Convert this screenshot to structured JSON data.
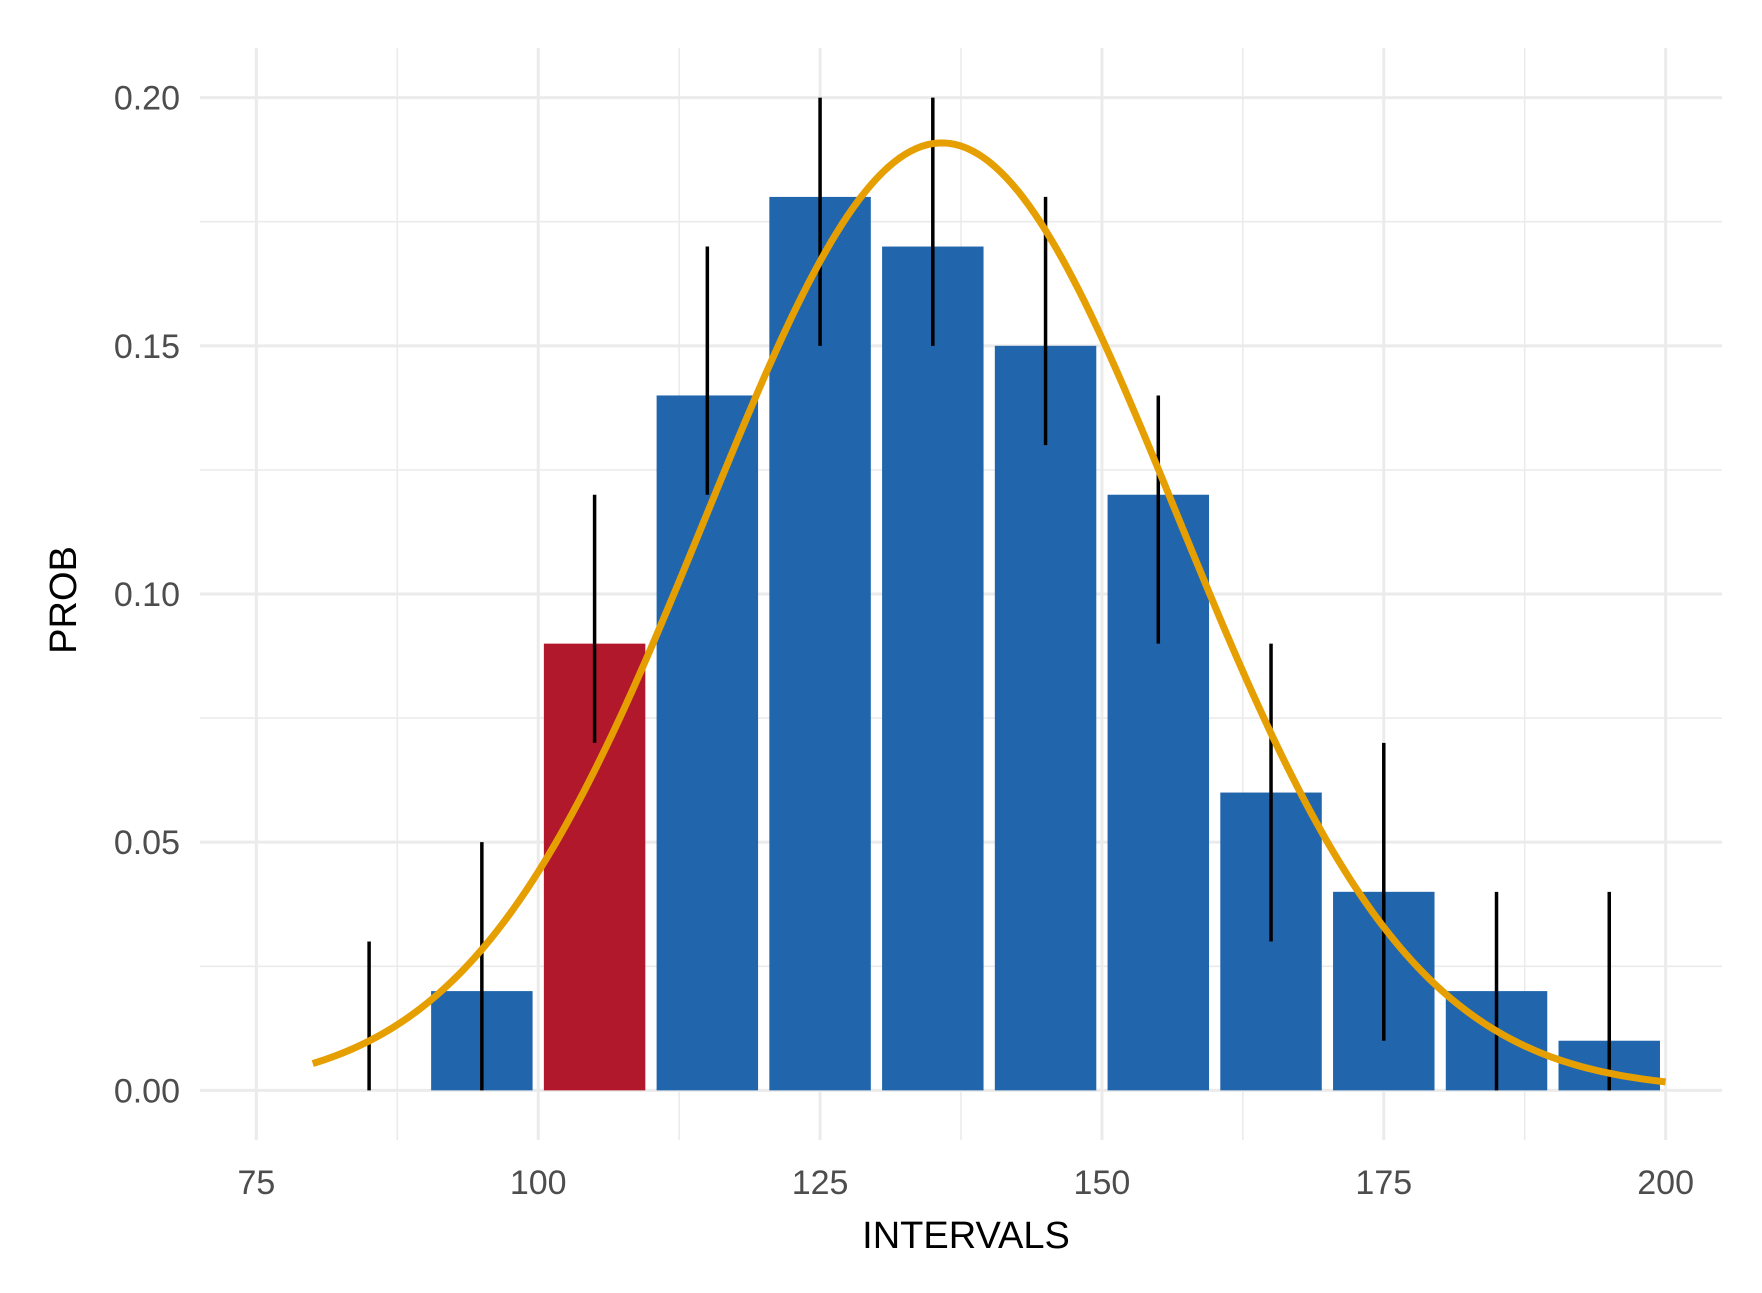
{
  "colors": {
    "bar": "#2166ac",
    "highlight_bar": "#b2182b",
    "curve": "#e69f00",
    "error_bar": "#000000",
    "grid": "#ebebeb",
    "background": "#ffffff"
  },
  "chart_data": {
    "type": "bar",
    "title": "",
    "xlabel": "INTERVALS",
    "ylabel": "PROB",
    "xlim": [
      70,
      205
    ],
    "ylim": [
      -0.01,
      0.21
    ],
    "x_ticks": [
      75,
      100,
      125,
      150,
      175,
      200
    ],
    "x_tick_labels": [
      "75",
      "100",
      "125",
      "150",
      "175",
      "200"
    ],
    "y_ticks": [
      0,
      0.05,
      0.1,
      0.15,
      0.2
    ],
    "y_tick_labels": [
      "0.00",
      "0.05",
      "0.10",
      "0.15",
      "0.20"
    ],
    "grid": true,
    "bar_width": 9,
    "bars": [
      {
        "x": 85,
        "value": 0.0,
        "highlight": false
      },
      {
        "x": 95,
        "value": 0.02,
        "highlight": false
      },
      {
        "x": 105,
        "value": 0.09,
        "highlight": true
      },
      {
        "x": 115,
        "value": 0.14,
        "highlight": false
      },
      {
        "x": 125,
        "value": 0.18,
        "highlight": false
      },
      {
        "x": 135,
        "value": 0.17,
        "highlight": false
      },
      {
        "x": 145,
        "value": 0.15,
        "highlight": false
      },
      {
        "x": 155,
        "value": 0.12,
        "highlight": false
      },
      {
        "x": 165,
        "value": 0.06,
        "highlight": false
      },
      {
        "x": 175,
        "value": 0.04,
        "highlight": false
      },
      {
        "x": 185,
        "value": 0.02,
        "highlight": false
      },
      {
        "x": 195,
        "value": 0.01,
        "highlight": false
      }
    ],
    "error_bars": [
      {
        "x": 85,
        "low": 0.0,
        "high": 0.03
      },
      {
        "x": 95,
        "low": 0.0,
        "high": 0.05
      },
      {
        "x": 105,
        "low": 0.07,
        "high": 0.12
      },
      {
        "x": 115,
        "low": 0.12,
        "high": 0.17
      },
      {
        "x": 125,
        "low": 0.15,
        "high": 0.2
      },
      {
        "x": 135,
        "low": 0.15,
        "high": 0.2
      },
      {
        "x": 145,
        "low": 0.13,
        "high": 0.18
      },
      {
        "x": 155,
        "low": 0.09,
        "high": 0.14
      },
      {
        "x": 165,
        "low": 0.03,
        "high": 0.09
      },
      {
        "x": 175,
        "low": 0.01,
        "high": 0.07
      },
      {
        "x": 185,
        "low": 0.0,
        "high": 0.04
      },
      {
        "x": 195,
        "low": 0.0,
        "high": 0.04
      }
    ],
    "curve": {
      "type": "normal",
      "mean": 135.8,
      "sd": 20.9,
      "scale": 10,
      "x_range": [
        80,
        200
      ]
    }
  }
}
